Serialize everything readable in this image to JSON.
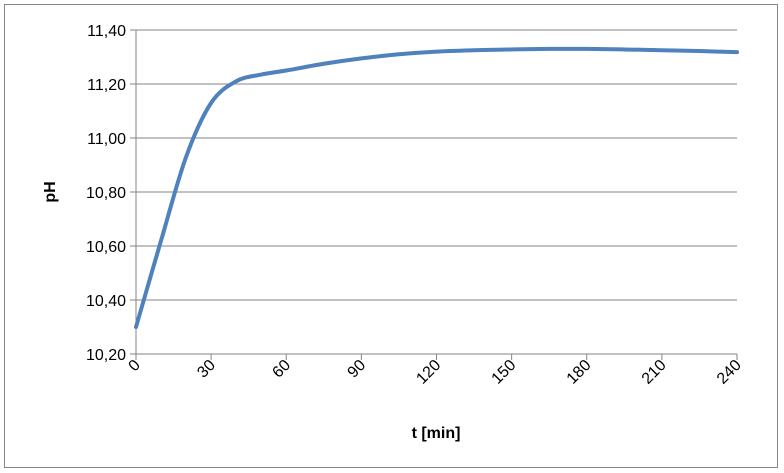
{
  "chart_data": {
    "type": "line",
    "title": "",
    "xlabel": "t [min]",
    "ylabel": "pH",
    "xlim": [
      0,
      240
    ],
    "ylim": [
      10.2,
      11.4
    ],
    "x_ticks": [
      0,
      30,
      60,
      90,
      120,
      150,
      180,
      210,
      240
    ],
    "x_tick_labels": [
      "0",
      "30",
      "60",
      "90",
      "120",
      "150",
      "180",
      "210",
      "240"
    ],
    "y_ticks": [
      10.2,
      10.4,
      10.6,
      10.8,
      11.0,
      11.2,
      11.4
    ],
    "y_tick_labels": [
      "10,20",
      "10,40",
      "10,60",
      "10,80",
      "11,00",
      "11,20",
      "11,40"
    ],
    "grid": "horizontal",
    "legend": "none",
    "series": [
      {
        "color": "#4f81bd",
        "x": [
          0,
          10,
          20,
          30,
          40,
          50,
          60,
          75,
          90,
          105,
          120,
          135,
          150,
          165,
          180,
          195,
          210,
          225,
          240
        ],
        "y": [
          10.3,
          10.62,
          10.93,
          11.13,
          11.21,
          11.235,
          11.25,
          11.275,
          11.295,
          11.31,
          11.32,
          11.325,
          11.328,
          11.33,
          11.33,
          11.328,
          11.325,
          11.322,
          11.318
        ]
      }
    ]
  }
}
